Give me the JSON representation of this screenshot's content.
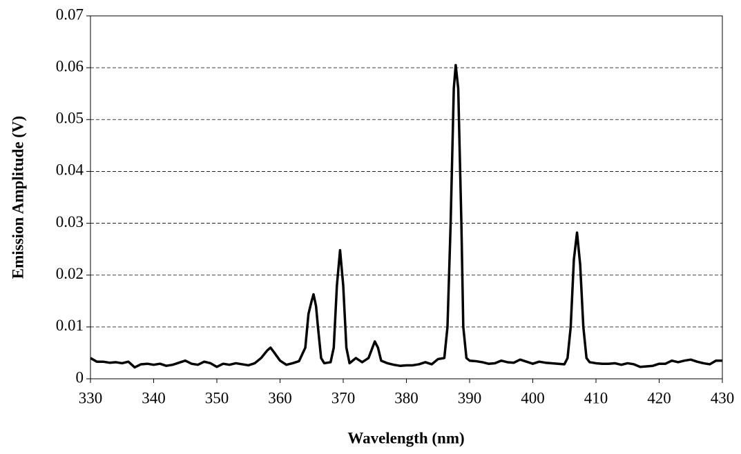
{
  "chart_data": {
    "type": "line",
    "xlabel": "Wavelength (nm)",
    "ylabel": "Emission Amplitude (V)",
    "xlim": [
      330,
      430
    ],
    "xticks": [
      330,
      340,
      350,
      360,
      370,
      380,
      390,
      400,
      410,
      420,
      430
    ],
    "ylim": [
      0,
      0.07
    ],
    "yticks": [
      0,
      0.01,
      0.02,
      0.03,
      0.04,
      0.05,
      0.06,
      0.07
    ],
    "grid": true,
    "x": [
      330,
      331,
      332,
      333,
      334,
      335,
      336,
      337,
      338,
      339,
      340,
      341,
      342,
      343,
      344,
      345,
      346,
      347,
      348,
      349,
      350,
      351,
      352,
      353,
      354,
      355,
      356,
      357,
      358,
      358.5,
      359,
      360,
      361,
      362,
      363,
      364,
      364.5,
      365,
      365.3,
      365.7,
      366,
      366.5,
      367,
      368,
      368.5,
      369,
      369.5,
      370,
      370.5,
      371,
      372,
      373,
      374,
      375,
      375.5,
      376,
      377,
      378,
      379,
      380,
      381,
      382,
      383,
      384,
      385,
      386,
      386.5,
      387,
      387.5,
      387.8,
      388.2,
      388.7,
      389,
      389.5,
      390,
      391,
      392,
      393,
      394,
      395,
      396,
      397,
      398,
      399,
      400,
      401,
      402,
      403,
      404,
      405,
      405.5,
      406,
      406.5,
      407,
      407.5,
      408,
      408.5,
      409,
      410,
      411,
      412,
      413,
      414,
      415,
      416,
      417,
      418,
      419,
      420,
      421,
      422,
      423,
      424,
      425,
      426,
      427,
      428,
      429,
      430
    ],
    "series": [
      {
        "color": "#000000",
        "values": [
          0.004,
          0.0033,
          0.0033,
          0.0031,
          0.0032,
          0.003,
          0.0033,
          0.0022,
          0.0028,
          0.0029,
          0.0027,
          0.0029,
          0.0025,
          0.0027,
          0.0031,
          0.0035,
          0.0029,
          0.0027,
          0.0033,
          0.003,
          0.0023,
          0.0029,
          0.0027,
          0.003,
          0.0028,
          0.0026,
          0.003,
          0.004,
          0.0055,
          0.006,
          0.0052,
          0.0035,
          0.0027,
          0.003,
          0.0034,
          0.006,
          0.0125,
          0.015,
          0.0163,
          0.014,
          0.01,
          0.004,
          0.003,
          0.0032,
          0.006,
          0.018,
          0.0248,
          0.018,
          0.006,
          0.003,
          0.004,
          0.0032,
          0.004,
          0.0072,
          0.006,
          0.0035,
          0.003,
          0.0027,
          0.0025,
          0.0026,
          0.0026,
          0.0028,
          0.0032,
          0.0028,
          0.0038,
          0.004,
          0.01,
          0.03,
          0.056,
          0.0605,
          0.056,
          0.03,
          0.01,
          0.004,
          0.0035,
          0.0034,
          0.0032,
          0.0029,
          0.003,
          0.0035,
          0.0032,
          0.0031,
          0.0037,
          0.0033,
          0.0029,
          0.0033,
          0.0031,
          0.003,
          0.0029,
          0.0028,
          0.004,
          0.01,
          0.023,
          0.0282,
          0.022,
          0.01,
          0.004,
          0.0032,
          0.003,
          0.0029,
          0.0029,
          0.003,
          0.0027,
          0.003,
          0.0028,
          0.0023,
          0.0024,
          0.0025,
          0.0029,
          0.0029,
          0.0035,
          0.0032,
          0.0035,
          0.0037,
          0.0033,
          0.003,
          0.0028,
          0.0035,
          0.0035
        ]
      }
    ]
  }
}
